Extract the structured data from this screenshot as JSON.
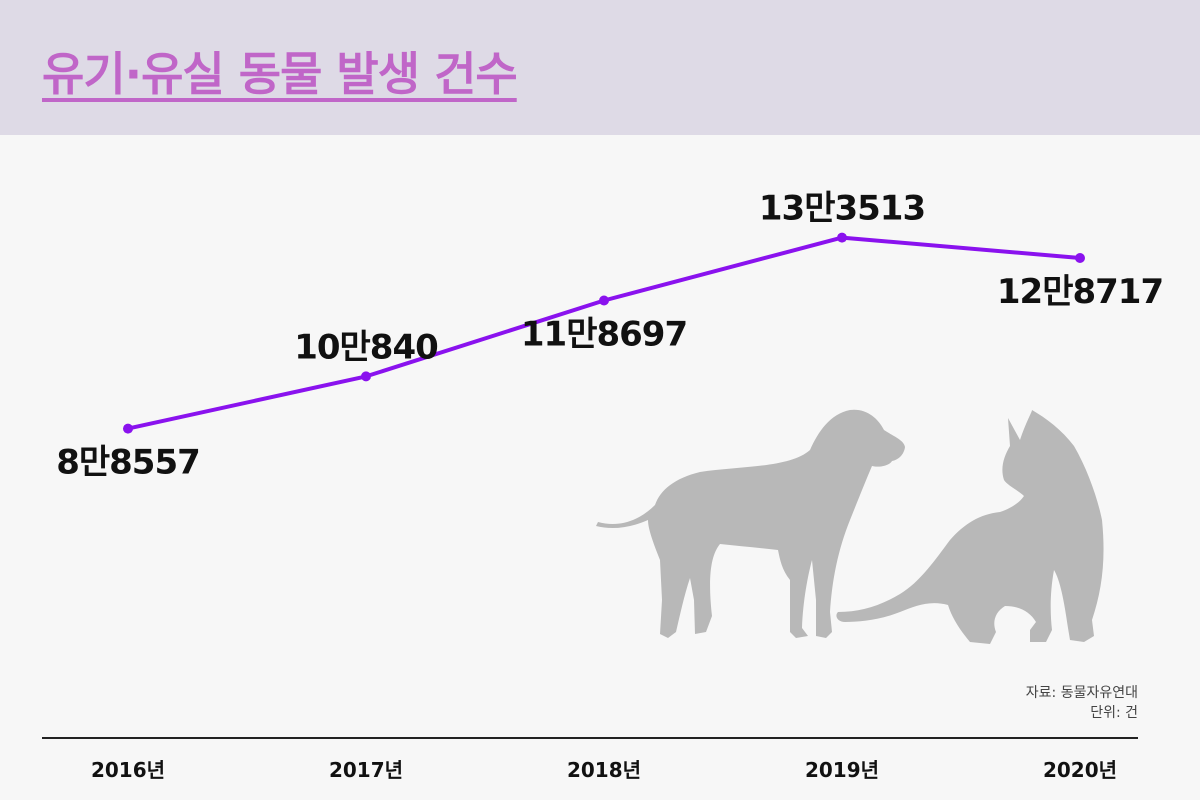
{
  "title": "유기·유실 동물 발생 건수",
  "source": {
    "source_text": "자료: 동물자유연대",
    "unit_text": "단위: 건"
  },
  "colors": {
    "header_bg": "#dedae6",
    "title": "#c066c8",
    "line": "#8a12ee",
    "silhouette": "#b8b8b8"
  },
  "chart_data": {
    "type": "line",
    "categories": [
      "2016년",
      "2017년",
      "2018년",
      "2019년",
      "2020년"
    ],
    "values": [
      88557,
      100840,
      118697,
      133513,
      128717
    ],
    "data_labels": [
      "8만8557",
      "10만840",
      "11만8697",
      "13만3513",
      "12만8717"
    ],
    "label_positions": [
      "below",
      "above",
      "below",
      "above",
      "below"
    ],
    "title": "유기·유실 동물 발생 건수",
    "xlabel": "",
    "ylabel": "",
    "ylim": [
      80000,
      140000
    ],
    "grid": false,
    "legend": "none"
  },
  "decorations": [
    "dog-silhouette-icon",
    "cat-silhouette-icon"
  ]
}
